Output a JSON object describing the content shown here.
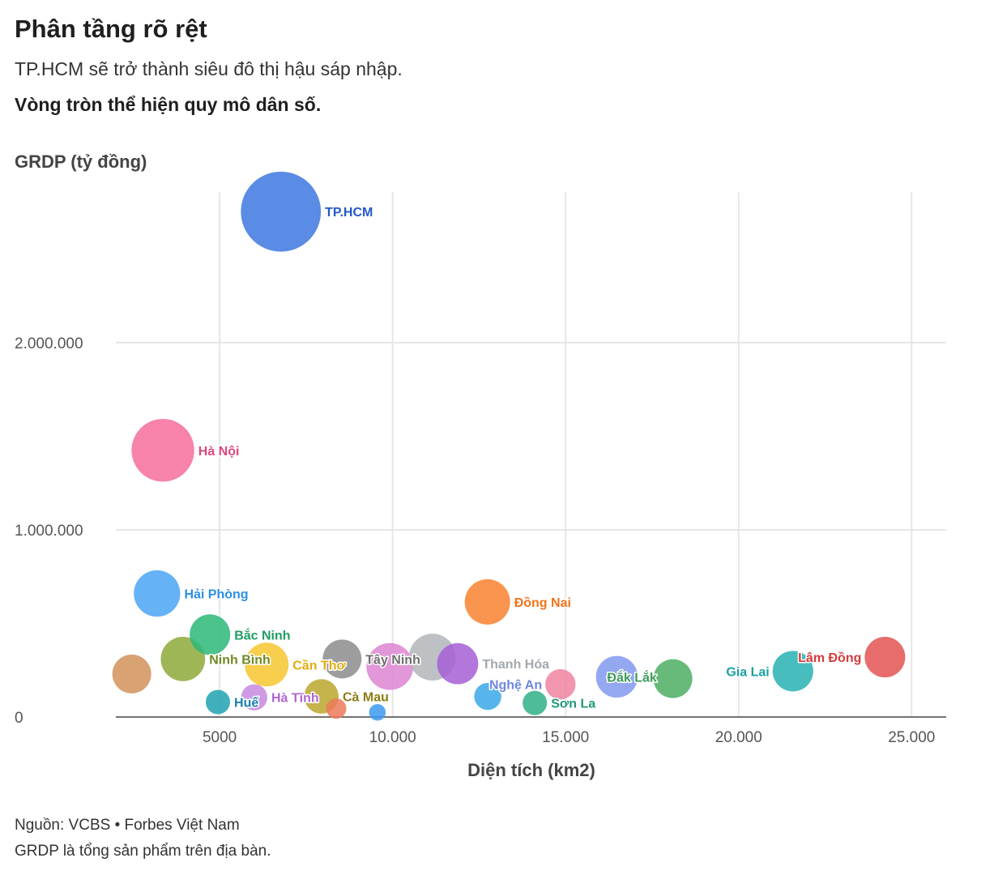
{
  "header": {
    "title": "Phân tầng rõ rệt",
    "subtitle": "TP.HCM sẽ trở thành siêu đô thị hậu sáp nhập.",
    "note": "Vòng tròn thể hiện quy mô dân số."
  },
  "footer": {
    "source": "Nguồn: VCBS • Forbes Việt Nam",
    "footnote": "GRDP là tổng sản phẩm trên địa bàn."
  },
  "chart_data": {
    "type": "scatter",
    "title": "Phân tầng rõ rệt",
    "xlabel": "Diện tích (km2)",
    "ylabel": "GRDP (tỷ đồng)",
    "xlim": [
      2000,
      26000
    ],
    "ylim": [
      0,
      2900000
    ],
    "x_ticks": [
      5000,
      10000,
      15000,
      20000,
      25000
    ],
    "x_tick_labels": [
      "5000",
      "10.000",
      "15.000",
      "20.000",
      "25.000"
    ],
    "y_ticks": [
      0,
      1000000,
      2000000
    ],
    "y_tick_labels": [
      "0",
      "1.000.000",
      "2.000.000"
    ],
    "grid": true,
    "size_encoding": "population",
    "points": [
      {
        "name": "TP.HCM",
        "x": 6770,
        "y": 2700000,
        "pop": 14.0,
        "color": "#3d78e0",
        "label": "TP.HCM",
        "label_pos": "right",
        "label_color": "#2358c8"
      },
      {
        "name": "Hà Nội",
        "x": 3360,
        "y": 1425000,
        "pop": 8.6,
        "color": "#f66d9b",
        "label": "Hà Nội",
        "label_pos": "right",
        "label_color": "#e0457e"
      },
      {
        "name": "Hải Phòng",
        "x": 3190,
        "y": 660000,
        "pop": 4.7,
        "color": "#4aa5f5",
        "label": "Hải Phòng",
        "label_pos": "right",
        "label_color": "#2b8fe6"
      },
      {
        "name": "Đồng Nai",
        "x": 12740,
        "y": 615000,
        "pop": 4.5,
        "color": "#f8812f",
        "label": "Đồng Nai",
        "label_pos": "right",
        "label_color": "#f0741a"
      },
      {
        "name": "Bắc Ninh",
        "x": 4720,
        "y": 440000,
        "pop": 3.6,
        "color": "#2db779",
        "label": "Bắc Ninh",
        "label_pos": "right",
        "label_color": "#1e9e5f"
      },
      {
        "name": "Ninh Bình",
        "x": 3940,
        "y": 310000,
        "pop": 4.3,
        "color": "#8ea93a",
        "label": "Ninh Bình",
        "label_pos": "right",
        "label_color": "#6f8a23"
      },
      {
        "name": "",
        "x": 2460,
        "y": 230000,
        "pop": 3.3,
        "color": "#d1925a",
        "label": "",
        "label_pos": "right",
        "label_color": "#b87535"
      },
      {
        "name": "Cần Thơ",
        "x": 6360,
        "y": 280000,
        "pop": 4.2,
        "color": "#f7c62f",
        "label": "Cần Thơ",
        "label_pos": "right",
        "label_color": "#e0ac10"
      },
      {
        "name": "Tây Ninh",
        "x": 8540,
        "y": 310000,
        "pop": 3.3,
        "color": "#8c8c8c",
        "label": "Tây Ninh",
        "label_pos": "right",
        "label_color": "#6e6e6e"
      },
      {
        "name": "",
        "x": 9920,
        "y": 270000,
        "pop": 4.8,
        "color": "#dd85d1",
        "label": "",
        "label_pos": "right",
        "label_color": "#c265b5"
      },
      {
        "name": "",
        "x": 11150,
        "y": 320000,
        "pop": 4.8,
        "color": "#b3b6ba",
        "label": "",
        "label_pos": "right",
        "label_color": "#8f9296"
      },
      {
        "name": "Thanh Hóa",
        "x": 11880,
        "y": 285000,
        "pop": 3.7,
        "color": "#a65fd6",
        "label": "Thanh Hóa",
        "label_pos": "right",
        "label_color": "#a3a8ad"
      },
      {
        "name": "Nghệ An",
        "x": 14850,
        "y": 175000,
        "pop": 2.0,
        "color": "#f083a1",
        "label": "Nghệ An",
        "label_pos": "left",
        "label_color": "#6f86e0"
      },
      {
        "name": "Đắk Lắk",
        "x": 16480,
        "y": 215000,
        "pop": 3.8,
        "color": "#8198ee",
        "label": "Đắk Lắk",
        "label_pos": "right-center",
        "label_color": "#3c9a5a"
      },
      {
        "name": "",
        "x": 18100,
        "y": 205000,
        "pop": 3.3,
        "color": "#4cae63",
        "label": "",
        "label_pos": "right",
        "label_color": "#3c9a5a"
      },
      {
        "name": "Gia Lai",
        "x": 21570,
        "y": 245000,
        "pop": 3.6,
        "color": "#28b2b2",
        "label": "Gia Lai",
        "label_pos": "left",
        "label_color": "#1aa0a0"
      },
      {
        "name": "Lâm Đồng",
        "x": 24230,
        "y": 320000,
        "pop": 3.6,
        "color": "#e35454",
        "label": "Lâm Đồng",
        "label_pos": "left",
        "label_color": "#d63b3b"
      },
      {
        "name": "Huế",
        "x": 4950,
        "y": 80000,
        "pop": 1.3,
        "color": "#20a2b2",
        "label": "Huế",
        "label_pos": "right",
        "label_color": "#1a7fb0"
      },
      {
        "name": "Hà Tĩnh",
        "x": 6000,
        "y": 105000,
        "pop": 1.5,
        "color": "#c88ae0",
        "label": "Hà Tĩnh",
        "label_pos": "right",
        "label_color": "#b066d0"
      },
      {
        "name": "Cà Mau",
        "x": 7940,
        "y": 110000,
        "pop": 2.6,
        "color": "#bba62d",
        "label": "Cà Mau",
        "label_pos": "right",
        "label_color": "#8c7c15"
      },
      {
        "name": "",
        "x": 8370,
        "y": 45000,
        "pop": 0.9,
        "color": "#ec7a5a",
        "label": "",
        "label_pos": "right",
        "label_color": "#d85e3c"
      },
      {
        "name": "",
        "x": 9560,
        "y": 25000,
        "pop": 0.6,
        "color": "#3b9af0",
        "label": "",
        "label_pos": "right",
        "label_color": "#2b86e0"
      },
      {
        "name": "",
        "x": 12750,
        "y": 110000,
        "pop": 1.6,
        "color": "#3aa8e8",
        "label": "",
        "label_pos": "right",
        "label_color": "#2b8fe6"
      },
      {
        "name": "Sơn La",
        "x": 14110,
        "y": 75000,
        "pop": 1.3,
        "color": "#2fb08a",
        "label": "Sơn La",
        "label_pos": "right",
        "label_color": "#1f9a78"
      }
    ]
  }
}
